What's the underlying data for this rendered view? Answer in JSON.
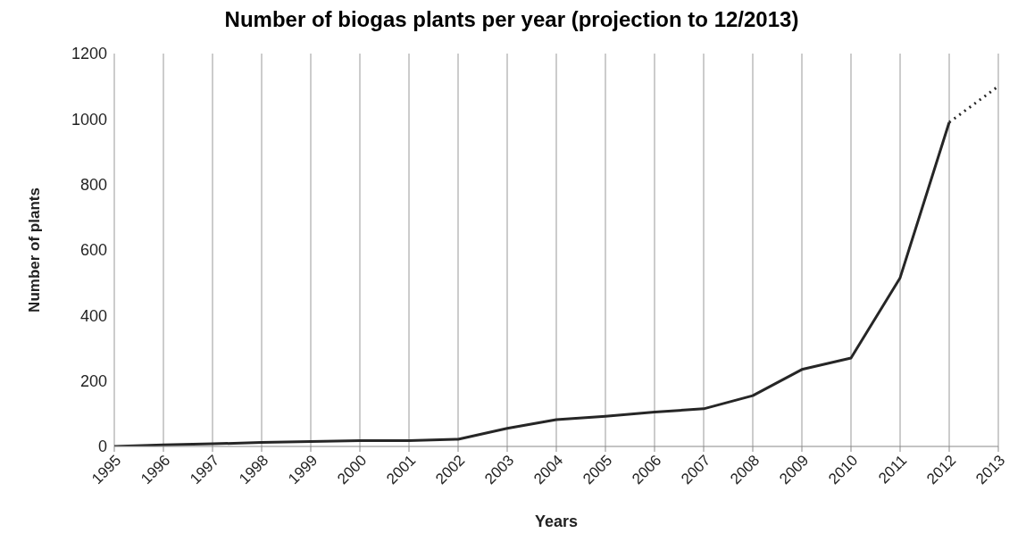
{
  "chart_data": {
    "type": "line",
    "title": "Number of biogas plants per year (projection to 12/2013)",
    "xlabel": "Years",
    "ylabel": "Number of plants",
    "categories": [
      "1995",
      "1996",
      "1997",
      "1998",
      "1999",
      "2000",
      "2001",
      "2002",
      "2003",
      "2004",
      "2005",
      "2006",
      "2007",
      "2008",
      "2009",
      "2010",
      "2011",
      "2012",
      "2013"
    ],
    "series": [
      {
        "color": "#262626",
        "line_style": "solid",
        "values": [
          0,
          5,
          8,
          12,
          15,
          18,
          18,
          22,
          55,
          82,
          92,
          105,
          115,
          155,
          235,
          270,
          515,
          990,
          null
        ]
      },
      {
        "color": "#262626",
        "line_style": "dotted",
        "values": [
          null,
          null,
          null,
          null,
          null,
          null,
          null,
          null,
          null,
          null,
          null,
          null,
          null,
          null,
          null,
          null,
          null,
          990,
          1100
        ]
      }
    ],
    "ylim": [
      0,
      1200
    ],
    "yticks": [
      0,
      200,
      400,
      600,
      800,
      1000,
      1200
    ],
    "grid": "x",
    "legend": false,
    "marker": "none"
  }
}
